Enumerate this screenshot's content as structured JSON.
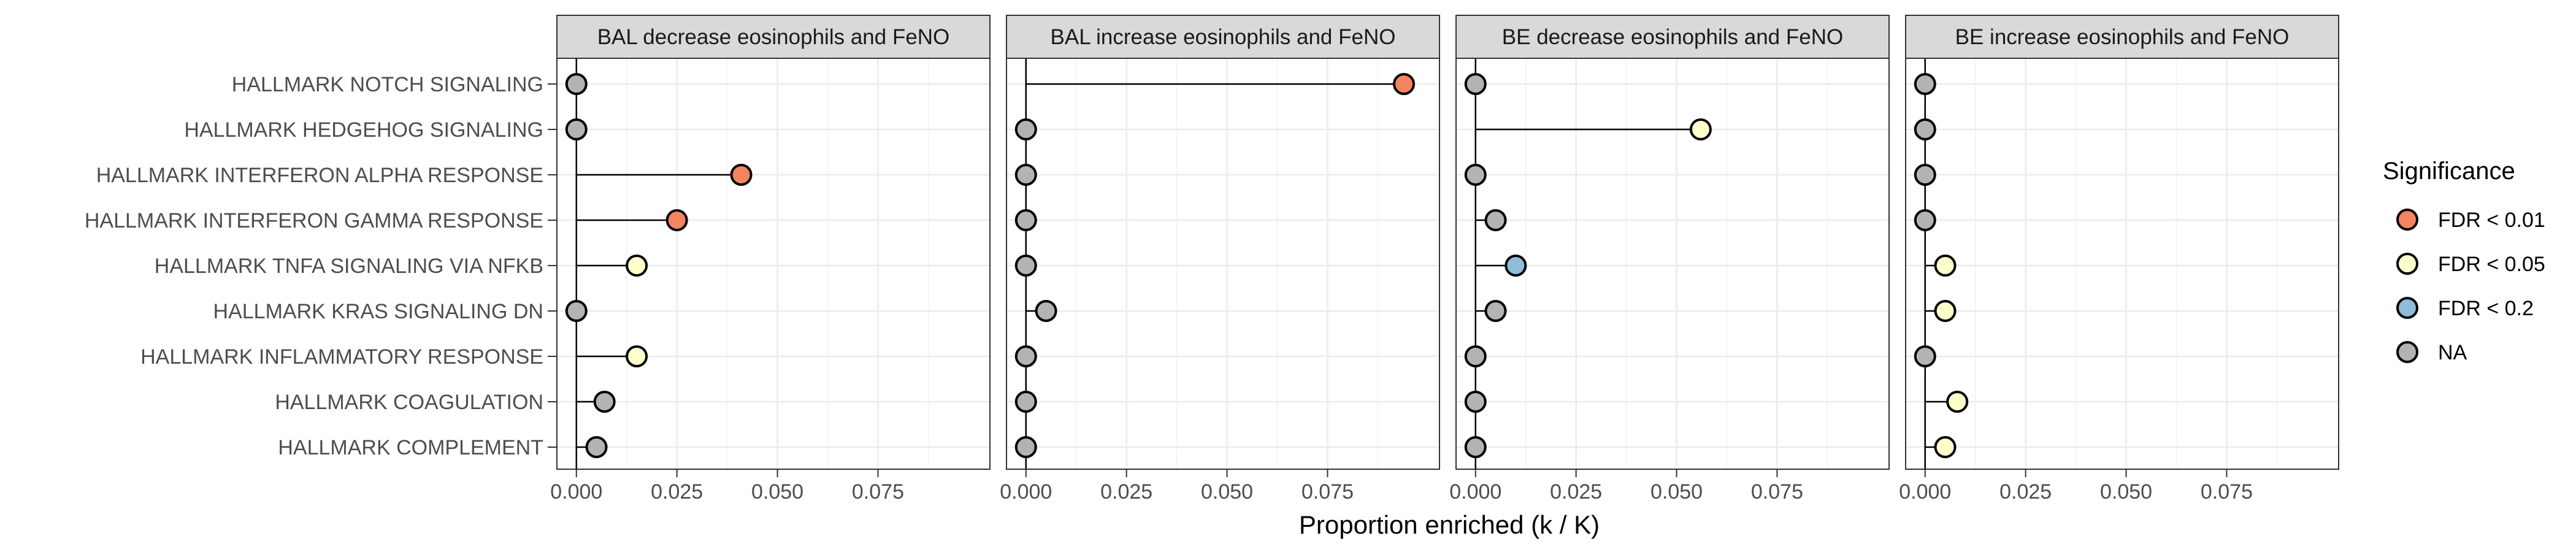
{
  "chart_data": {
    "type": "lollipop",
    "xlabel": "Proportion enriched (k / K)",
    "xlim": [
      0,
      0.098
    ],
    "xticks": [
      0,
      0.025,
      0.05,
      0.075
    ],
    "xtick_labels": [
      "0.000",
      "0.025",
      "0.050",
      "0.075"
    ],
    "grid": true,
    "categories": [
      "HALLMARK NOTCH SIGNALING",
      "HALLMARK HEDGEHOG SIGNALING",
      "HALLMARK INTERFERON ALPHA RESPONSE",
      "HALLMARK INTERFERON GAMMA RESPONSE",
      "HALLMARK TNFA SIGNALING VIA NFKB",
      "HALLMARK KRAS SIGNALING DN",
      "HALLMARK INFLAMMATORY RESPONSE",
      "HALLMARK COAGULATION",
      "HALLMARK COMPLEMENT"
    ],
    "legend": {
      "title": "Significance",
      "placement": "right",
      "items": [
        {
          "label": "FDR < 0.01",
          "color": "#F4845F"
        },
        {
          "label": "FDR < 0.05",
          "color": "#FFFFCC"
        },
        {
          "label": "FDR < 0.2",
          "color": "#8EBCD9"
        },
        {
          "label": "NA",
          "color": "#B3B3B3"
        }
      ]
    },
    "panels": [
      {
        "title": "BAL decrease eosinophils and FeNO",
        "values": [
          0.0,
          0.0,
          0.041,
          0.025,
          0.015,
          0.0,
          0.015,
          0.007,
          0.005
        ],
        "significance": [
          "NA",
          "NA",
          "FDR < 0.01",
          "FDR < 0.01",
          "FDR < 0.05",
          "NA",
          "FDR < 0.05",
          "NA",
          "NA"
        ]
      },
      {
        "title": "BAL increase eosinophils and FeNO",
        "values": [
          0.094,
          0.0,
          0.0,
          0.0,
          0.0,
          0.005,
          0.0,
          0.0,
          0.0
        ],
        "significance": [
          "FDR < 0.01",
          "NA",
          "NA",
          "NA",
          "NA",
          "NA",
          "NA",
          "NA",
          "NA"
        ]
      },
      {
        "title": "BE decrease eosinophils and FeNO",
        "values": [
          0.0,
          0.056,
          0.0,
          0.005,
          0.01,
          0.005,
          0.0,
          0.0,
          0.0
        ],
        "significance": [
          "NA",
          "FDR < 0.05",
          "NA",
          "NA",
          "FDR < 0.2",
          "NA",
          "NA",
          "NA",
          "NA"
        ]
      },
      {
        "title": "BE increase eosinophils and FeNO",
        "values": [
          0.0,
          0.0,
          0.0,
          0.0,
          0.005,
          0.005,
          0.0,
          0.008,
          0.005
        ],
        "significance": [
          "NA",
          "NA",
          "NA",
          "NA",
          "FDR < 0.05",
          "FDR < 0.05",
          "NA",
          "FDR < 0.05",
          "FDR < 0.05"
        ]
      }
    ]
  }
}
